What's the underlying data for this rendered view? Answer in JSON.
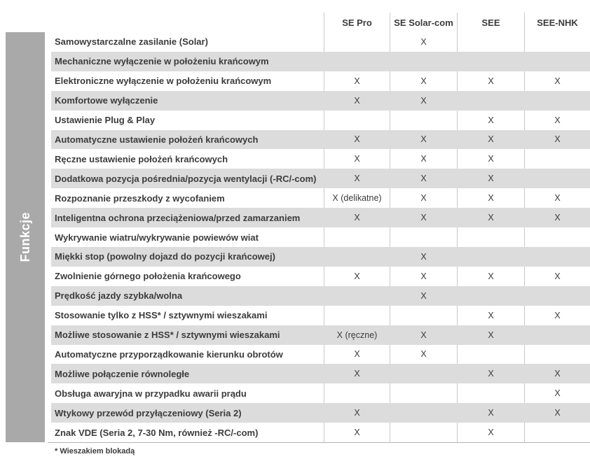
{
  "side_label": "Funkcje",
  "columns": [
    "SE Pro",
    "SE Solar-com",
    "SEE",
    "SEE-NHK"
  ],
  "rows": [
    {
      "label": "Samowystarczalne zasilanie (Solar)",
      "values": [
        "",
        "X",
        "",
        ""
      ]
    },
    {
      "label": "Mechaniczne wyłączenie w położeniu krańcowym",
      "values": [
        "",
        "",
        "",
        ""
      ]
    },
    {
      "label": "Elektroniczne wyłączenie w położeniu krańcowym",
      "values": [
        "X",
        "X",
        "X",
        "X"
      ]
    },
    {
      "label": "Komfortowe wyłączenie",
      "values": [
        "X",
        "X",
        "",
        ""
      ]
    },
    {
      "label": "Ustawienie Plug & Play",
      "values": [
        "",
        "",
        "X",
        "X"
      ]
    },
    {
      "label": "Automatyczne ustawienie położeń krańcowych",
      "values": [
        "X",
        "X",
        "X",
        "X"
      ]
    },
    {
      "label": "Ręczne ustawienie położeń krańcowych",
      "values": [
        "X",
        "X",
        "X",
        ""
      ]
    },
    {
      "label": "Dodatkowa pozycja pośrednia/pozycja wentylacji (-RC/-com)",
      "values": [
        "X",
        "X",
        "X",
        ""
      ]
    },
    {
      "label": "Rozpoznanie przeszkody z wycofaniem",
      "values": [
        "X (delikatne)",
        "X",
        "X",
        "X"
      ]
    },
    {
      "label": "Inteligentna ochrona przeciążeniowa/przed zamarzaniem",
      "values": [
        "X",
        "X",
        "X",
        "X"
      ]
    },
    {
      "label": "Wykrywanie wiatru/wykrywanie powiewów wiat",
      "values": [
        "",
        "",
        "",
        ""
      ]
    },
    {
      "label": "Miękki stop (powolny dojazd do pozycji krańcowej)",
      "values": [
        "",
        "X",
        "",
        ""
      ]
    },
    {
      "label": "Zwolnienie górnego położenia krańcowego",
      "values": [
        "X",
        "X",
        "X",
        "X"
      ]
    },
    {
      "label": "Prędkość jazdy szybka/wolna",
      "values": [
        "",
        "X",
        "",
        ""
      ]
    },
    {
      "label": "Stosowanie tylko z HSS* / sztywnymi wieszakami",
      "values": [
        "",
        "",
        "X",
        "X"
      ]
    },
    {
      "label": "Możliwe stosowanie z HSS* / sztywnymi wieszakami",
      "values": [
        "X (ręczne)",
        "X",
        "X",
        ""
      ]
    },
    {
      "label": "Automatyczne przyporządkowanie kierunku obrotów",
      "values": [
        "X",
        "X",
        "",
        ""
      ]
    },
    {
      "label": "Możliwe połączenie równoległe",
      "values": [
        "X",
        "",
        "X",
        "X"
      ]
    },
    {
      "label": "Obsługa awaryjna w przypadku awarii prądu",
      "values": [
        "",
        "",
        "",
        "X"
      ]
    },
    {
      "label": "Wtykowy przewód przyłączeniowy (Seria 2)",
      "values": [
        "X",
        "",
        "X",
        "X"
      ]
    },
    {
      "label": "Znak VDE (Seria 2, 7-30 Nm, również -RC/-com)",
      "values": [
        "X",
        "",
        "X",
        ""
      ]
    }
  ],
  "footnote": "* Wieszakiem blokadą",
  "colors": {
    "side_bar": "#a9a9a9",
    "row_alt": "#dcdcdc",
    "divider": "#c9c9c9",
    "text": "#3c3c3c",
    "bottom_line": "#b3b3b3"
  }
}
